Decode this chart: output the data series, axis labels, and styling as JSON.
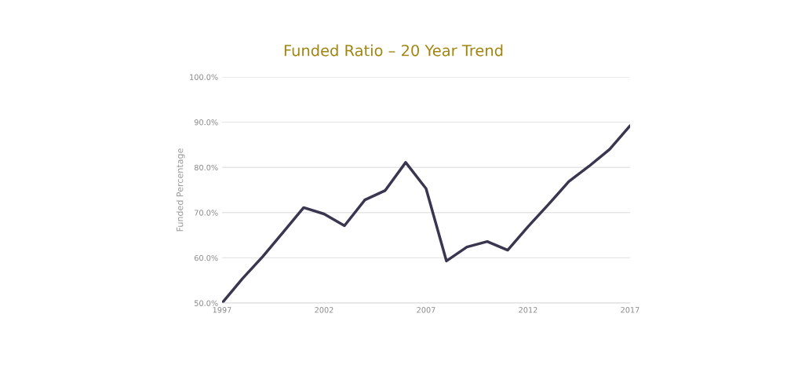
{
  "chart_data": {
    "type": "line",
    "title": "Funded Ratio – 20 Year Trend",
    "ylabel": "Funded Percentage",
    "x": [
      1997,
      1998,
      1999,
      2000,
      2001,
      2002,
      2003,
      2004,
      2005,
      2006,
      2007,
      2008,
      2009,
      2010,
      2011,
      2012,
      2013,
      2014,
      2015,
      2016,
      2017
    ],
    "series": [
      {
        "color": "#3b3650",
        "values": [
          50.0,
          55.4,
          60.3,
          65.7,
          71.1,
          69.7,
          67.1,
          72.8,
          74.9,
          81.1,
          75.3,
          59.3,
          62.4,
          63.6,
          61.7,
          66.9,
          71.8,
          76.9,
          80.3,
          84.0,
          89.2
        ]
      }
    ],
    "xlim": [
      1997,
      2017
    ],
    "xticks": [
      1997,
      2002,
      2007,
      2012,
      2017
    ],
    "ylim": [
      50,
      100
    ],
    "yticks": [
      {
        "value": 50,
        "label": "50.0%"
      },
      {
        "value": 60,
        "label": "60.0%"
      },
      {
        "value": 70,
        "label": "70.0%"
      },
      {
        "value": 80,
        "label": "80.0%"
      },
      {
        "value": 90,
        "label": "90.0%"
      },
      {
        "value": 100,
        "label": "100.0%"
      }
    ],
    "grid": "y",
    "marker": "none",
    "line_style": "solid"
  }
}
